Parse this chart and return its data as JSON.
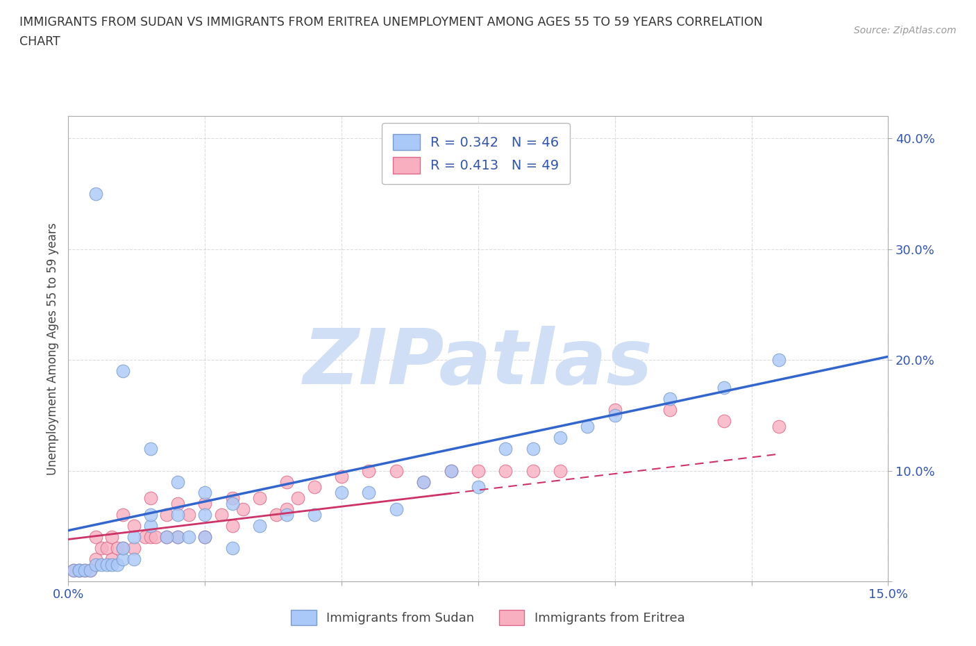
{
  "title_line1": "IMMIGRANTS FROM SUDAN VS IMMIGRANTS FROM ERITREA UNEMPLOYMENT AMONG AGES 55 TO 59 YEARS CORRELATION",
  "title_line2": "CHART",
  "source": "Source: ZipAtlas.com",
  "ylabel": "Unemployment Among Ages 55 to 59 years",
  "xlim": [
    0.0,
    0.15
  ],
  "ylim": [
    0.0,
    0.42
  ],
  "xticks": [
    0.0,
    0.025,
    0.05,
    0.075,
    0.1,
    0.125,
    0.15
  ],
  "xtick_labels": [
    "0.0%",
    "",
    "",
    "",
    "",
    "",
    "15.0%"
  ],
  "yticks": [
    0.0,
    0.1,
    0.2,
    0.3,
    0.4
  ],
  "ytick_labels": [
    "",
    "10.0%",
    "20.0%",
    "30.0%",
    "40.0%"
  ],
  "sudan_color": "#aac8f8",
  "sudan_edge_color": "#7799cc",
  "eritrea_color": "#f8b0c0",
  "eritrea_edge_color": "#dd6688",
  "sudan_line_color": "#3366cc",
  "eritrea_line_color": "#cc3366",
  "sudan_R": 0.342,
  "sudan_N": 46,
  "eritrea_R": 0.413,
  "eritrea_N": 49,
  "legend_label_color": "#3355aa",
  "watermark": "ZIPatlas",
  "watermark_color": "#d0dff5",
  "sudan_line_x0": 0.0,
  "sudan_line_y0": 0.046,
  "sudan_line_x1": 0.15,
  "sudan_line_y1": 0.203,
  "eritrea_line_x0": 0.0,
  "eritrea_line_y0": 0.038,
  "eritrea_line_x1": 0.13,
  "eritrea_line_y1": 0.115,
  "sudan_x": [
    0.005,
    0.01,
    0.015,
    0.015,
    0.02,
    0.02,
    0.025,
    0.025,
    0.03,
    0.03,
    0.035,
    0.04,
    0.045,
    0.05,
    0.055,
    0.06,
    0.065,
    0.07,
    0.075,
    0.08,
    0.085,
    0.09,
    0.095,
    0.1,
    0.11,
    0.12,
    0.13,
    0.001,
    0.002,
    0.002,
    0.003,
    0.004,
    0.005,
    0.006,
    0.007,
    0.008,
    0.009,
    0.01,
    0.01,
    0.012,
    0.012,
    0.015,
    0.018,
    0.02,
    0.022,
    0.025
  ],
  "sudan_y": [
    0.35,
    0.19,
    0.12,
    0.05,
    0.09,
    0.04,
    0.08,
    0.04,
    0.07,
    0.03,
    0.05,
    0.06,
    0.06,
    0.08,
    0.08,
    0.065,
    0.09,
    0.1,
    0.085,
    0.12,
    0.12,
    0.13,
    0.14,
    0.15,
    0.165,
    0.175,
    0.2,
    0.01,
    0.01,
    0.01,
    0.01,
    0.01,
    0.015,
    0.015,
    0.015,
    0.015,
    0.015,
    0.02,
    0.03,
    0.02,
    0.04,
    0.06,
    0.04,
    0.06,
    0.04,
    0.06
  ],
  "eritrea_x": [
    0.001,
    0.002,
    0.003,
    0.004,
    0.005,
    0.005,
    0.006,
    0.007,
    0.008,
    0.008,
    0.009,
    0.01,
    0.01,
    0.012,
    0.012,
    0.014,
    0.015,
    0.015,
    0.016,
    0.018,
    0.018,
    0.02,
    0.02,
    0.022,
    0.025,
    0.025,
    0.028,
    0.03,
    0.03,
    0.032,
    0.035,
    0.038,
    0.04,
    0.04,
    0.042,
    0.045,
    0.05,
    0.055,
    0.06,
    0.065,
    0.07,
    0.075,
    0.08,
    0.085,
    0.09,
    0.1,
    0.11,
    0.12,
    0.13
  ],
  "eritrea_y": [
    0.01,
    0.01,
    0.01,
    0.01,
    0.04,
    0.02,
    0.03,
    0.03,
    0.04,
    0.02,
    0.03,
    0.06,
    0.03,
    0.05,
    0.03,
    0.04,
    0.075,
    0.04,
    0.04,
    0.06,
    0.04,
    0.07,
    0.04,
    0.06,
    0.07,
    0.04,
    0.06,
    0.075,
    0.05,
    0.065,
    0.075,
    0.06,
    0.09,
    0.065,
    0.075,
    0.085,
    0.095,
    0.1,
    0.1,
    0.09,
    0.1,
    0.1,
    0.1,
    0.1,
    0.1,
    0.155,
    0.155,
    0.145,
    0.14
  ],
  "background_color": "#ffffff",
  "grid_color": "#cccccc"
}
